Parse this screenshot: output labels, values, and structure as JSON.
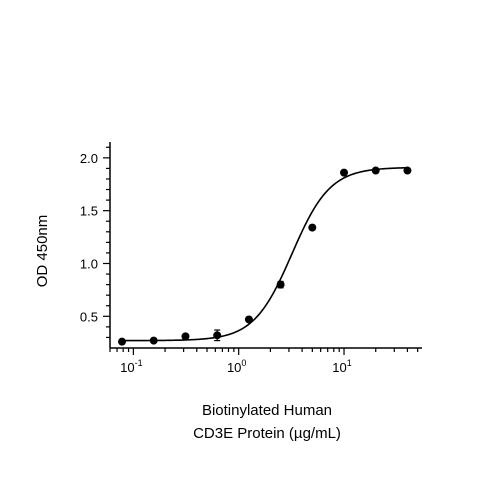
{
  "chart_data": {
    "type": "scatter",
    "xscale": "log",
    "xlim": [
      0.06,
      55
    ],
    "ylim": [
      0.2,
      2.15
    ],
    "xticks": [
      {
        "value": 0.1,
        "base": "10",
        "exp": "-1"
      },
      {
        "value": 1,
        "base": "10",
        "exp": "0"
      },
      {
        "value": 10,
        "base": "10",
        "exp": "1"
      }
    ],
    "yticks": [
      {
        "value": 0.5,
        "label": "0.5"
      },
      {
        "value": 1.0,
        "label": "1.0"
      },
      {
        "value": 1.5,
        "label": "1.5"
      },
      {
        "value": 2.0,
        "label": "2.0"
      }
    ],
    "ylabel": "OD 450nm",
    "xlabel_line1": "Biotinylated Human",
    "xlabel_line2": "CD3E Protein (µg/mL)",
    "series": [
      {
        "x": [
          0.078,
          0.156,
          0.3125,
          0.625,
          1.25,
          2.5,
          5,
          10,
          20,
          40
        ],
        "y": [
          0.26,
          0.27,
          0.31,
          0.32,
          0.47,
          0.8,
          1.34,
          1.86,
          1.88,
          1.88
        ],
        "err": [
          0.01,
          0.01,
          0.02,
          0.05,
          0.01,
          0.03,
          0.02,
          0.01,
          0.01,
          0.01
        ]
      }
    ],
    "fit": {
      "model": "4PL",
      "bottom": 0.27,
      "top": 1.91,
      "ec50": 3.2,
      "hill": 2.4
    },
    "grid": false,
    "colors": {
      "marker": "#000000",
      "line": "#000000"
    }
  }
}
